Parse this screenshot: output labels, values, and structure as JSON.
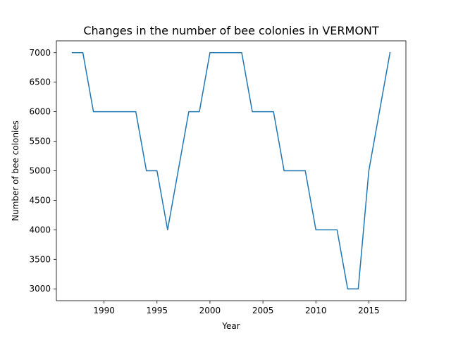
{
  "chart_data": {
    "type": "line",
    "title": "Changes in the number of bee colonies in VERMONT",
    "xlabel": "Year",
    "ylabel": "Number of bee colonies",
    "xlim": [
      1985.5,
      2018.5
    ],
    "ylim": [
      2800,
      7200
    ],
    "x_ticks": [
      1990,
      1995,
      2000,
      2005,
      2010,
      2015
    ],
    "y_ticks": [
      3000,
      3500,
      4000,
      4500,
      5000,
      5500,
      6000,
      6500,
      7000
    ],
    "grid": false,
    "legend": "none",
    "series": [
      {
        "color": "#1f77b4",
        "x": [
          1987,
          1988,
          1989,
          1990,
          1991,
          1992,
          1993,
          1994,
          1995,
          1996,
          1997,
          1998,
          1999,
          2000,
          2001,
          2002,
          2003,
          2004,
          2005,
          2006,
          2007,
          2008,
          2009,
          2010,
          2011,
          2012,
          2013,
          2014,
          2015,
          2016,
          2017
        ],
        "y": [
          7000,
          7000,
          6000,
          6000,
          6000,
          6000,
          6000,
          5000,
          5000,
          4000,
          5000,
          6000,
          6000,
          7000,
          7000,
          7000,
          7000,
          6000,
          6000,
          6000,
          5000,
          5000,
          5000,
          4000,
          4000,
          4000,
          3000,
          3000,
          5000,
          6000,
          7000
        ]
      }
    ]
  }
}
